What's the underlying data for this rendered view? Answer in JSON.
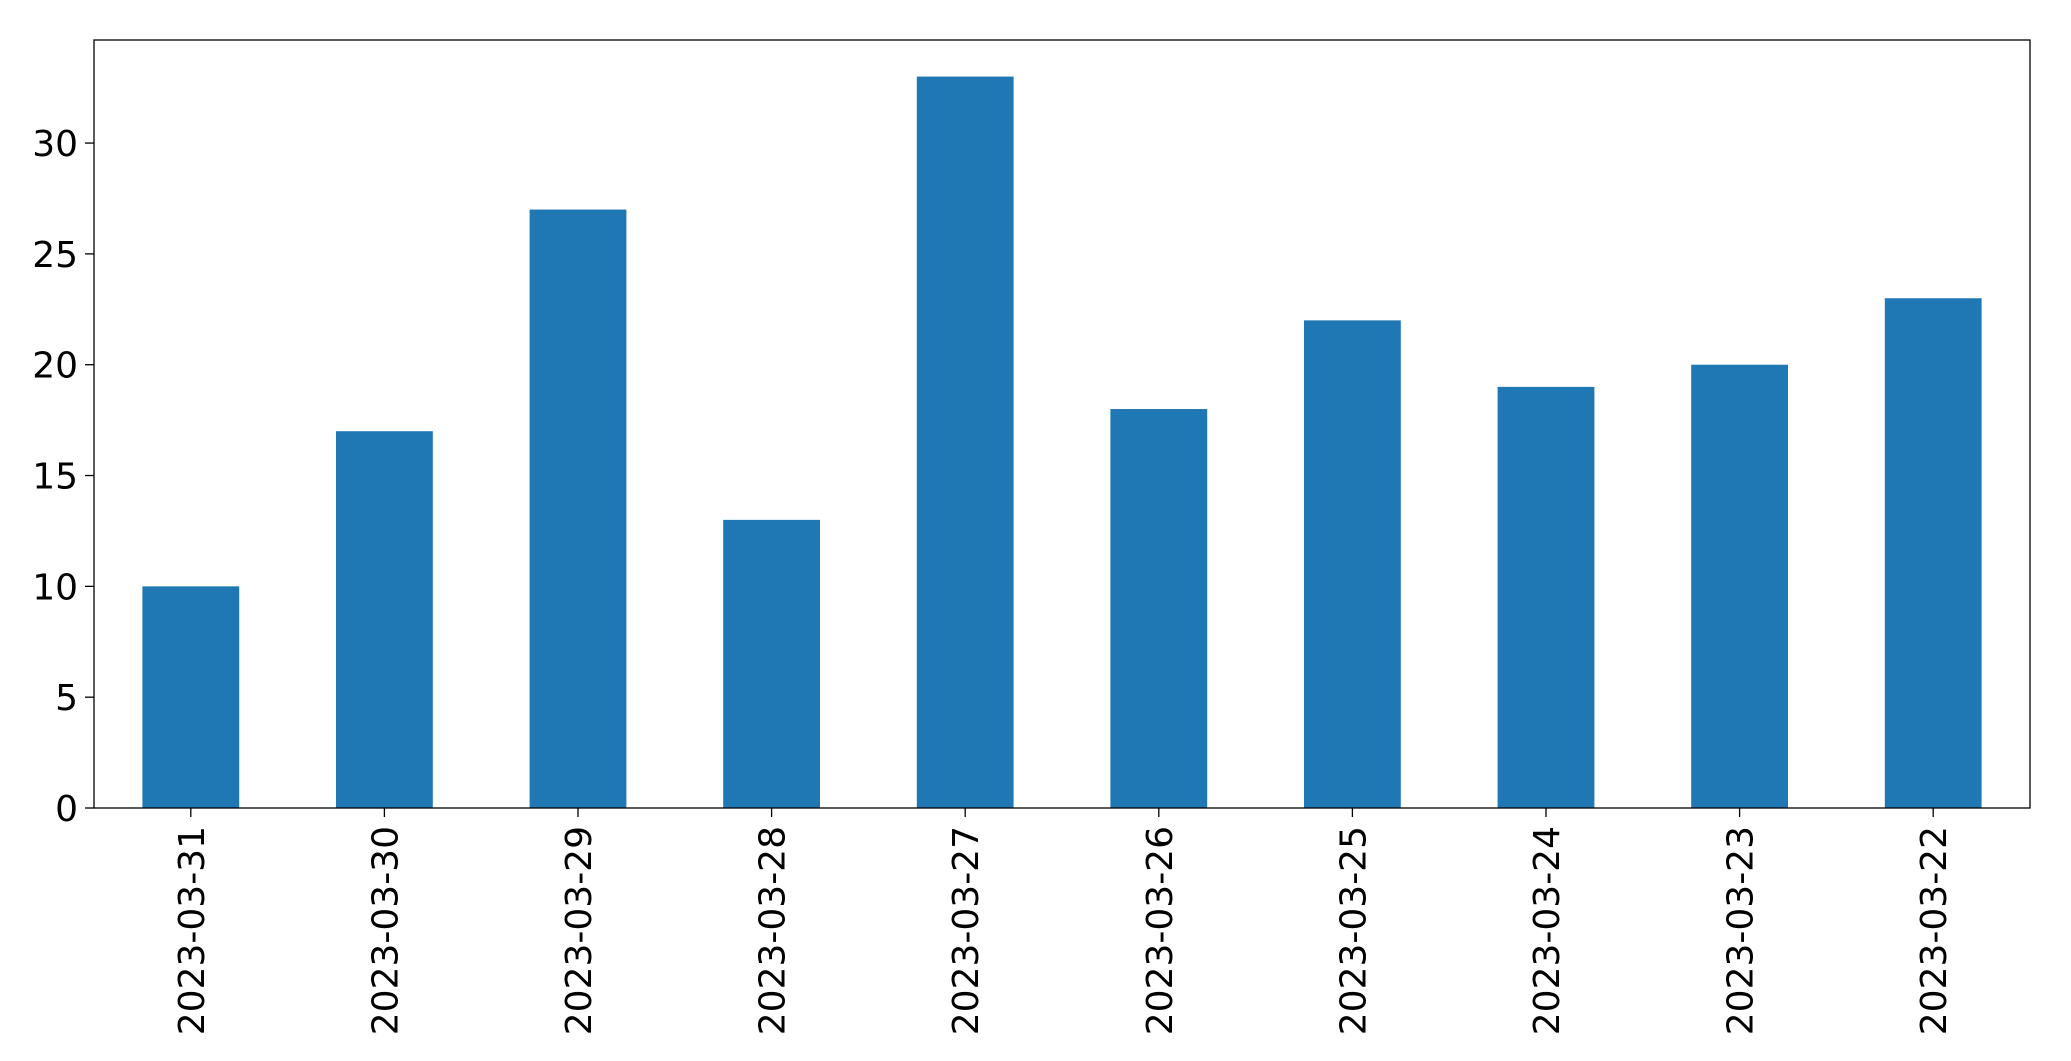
{
  "chart_data": {
    "type": "bar",
    "categories": [
      "2023-03-31",
      "2023-03-30",
      "2023-03-29",
      "2023-03-28",
      "2023-03-27",
      "2023-03-26",
      "2023-03-25",
      "2023-03-24",
      "2023-03-23",
      "2023-03-22"
    ],
    "values": [
      10,
      17,
      27,
      13,
      33,
      18,
      22,
      19,
      20,
      23
    ],
    "color": "#1f77b4",
    "ylim": [
      0,
      34.65
    ],
    "yticks": [
      0,
      5,
      10,
      15,
      20,
      25,
      30
    ],
    "grid": false
  }
}
